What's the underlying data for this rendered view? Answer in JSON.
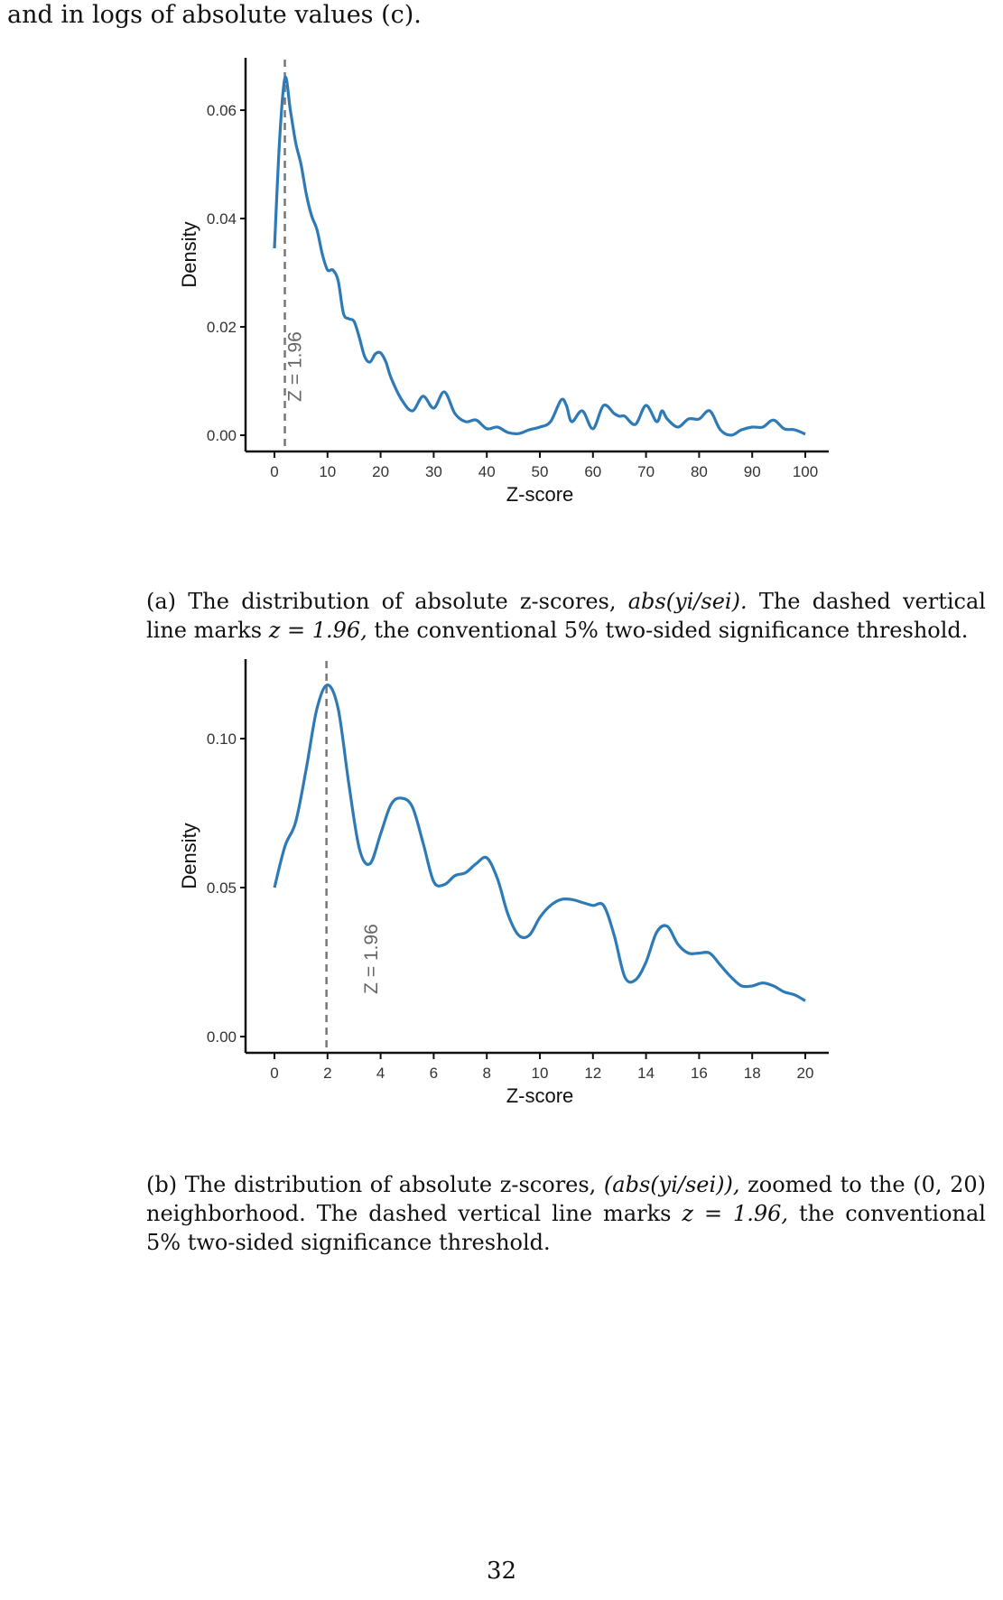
{
  "intro_text": "and in logs of absolute values (c).",
  "page_number": "32",
  "captions": {
    "a": {
      "label": "(a)",
      "before_math": "The distribution of absolute z-scores,",
      "math_expr": "abs(yi/sei).",
      "after_math": "The dashed vertical line marks",
      "z_expr": "z = 1.96,",
      "tail": "the conventional 5% two-sided significance threshold."
    },
    "b": {
      "label": "(b)",
      "before_math": "The distribution of absolute z-scores,",
      "math_expr": "(abs(yi/sei)),",
      "after_math": "zoomed to the (0, 20) neighborhood. The dashed vertical line marks",
      "z_expr": "z = 1.96,",
      "tail": "the conventional 5% two-sided significance threshold."
    }
  },
  "chart_data": [
    {
      "type": "line",
      "title": "",
      "xlabel": "Z-score",
      "ylabel": "Density",
      "xlim": [
        0,
        100
      ],
      "ylim": [
        0,
        0.066
      ],
      "x_ticks": [
        0,
        10,
        20,
        30,
        40,
        50,
        60,
        70,
        80,
        90,
        100
      ],
      "y_ticks": [
        "0.00",
        "0.02",
        "0.04",
        "0.06"
      ],
      "y_tick_values": [
        0,
        0.02,
        0.04,
        0.06
      ],
      "line_color": "#2e7ab6",
      "threshold": {
        "x": 1.96,
        "label": "Z = 1.96",
        "color": "#777777"
      },
      "series": [
        {
          "x": [
            0,
            1,
            2,
            3,
            4,
            5,
            6,
            7,
            8,
            9,
            10,
            11,
            12,
            13,
            14,
            15,
            16,
            17,
            18,
            19,
            20,
            21,
            22,
            24,
            26,
            28,
            30,
            32,
            34,
            36,
            38,
            40,
            42,
            44,
            46,
            48,
            50,
            52,
            54,
            55,
            56,
            58,
            60,
            62,
            64,
            65,
            66,
            68,
            70,
            72,
            73,
            74,
            76,
            78,
            80,
            82,
            84,
            86,
            88,
            90,
            92,
            94,
            96,
            98,
            100
          ],
          "y": [
            0.0345,
            0.055,
            0.066,
            0.06,
            0.054,
            0.05,
            0.0445,
            0.0405,
            0.038,
            0.0335,
            0.0305,
            0.0305,
            0.0285,
            0.0225,
            0.0215,
            0.021,
            0.018,
            0.0145,
            0.0135,
            0.015,
            0.0152,
            0.0135,
            0.0105,
            0.0065,
            0.0045,
            0.0072,
            0.005,
            0.008,
            0.004,
            0.0025,
            0.0028,
            0.0012,
            0.0015,
            0.0005,
            0.0003,
            0.001,
            0.0015,
            0.0025,
            0.0065,
            0.0055,
            0.0025,
            0.0045,
            0.0012,
            0.0055,
            0.004,
            0.0035,
            0.0035,
            0.002,
            0.0055,
            0.0025,
            0.0045,
            0.003,
            0.0015,
            0.003,
            0.003,
            0.0045,
            0.001,
            0.0,
            0.001,
            0.0015,
            0.0015,
            0.0028,
            0.0012,
            0.001,
            0.0002
          ]
        }
      ]
    },
    {
      "type": "line",
      "title": "",
      "xlabel": "Z-score",
      "ylabel": "Density",
      "xlim": [
        0,
        20
      ],
      "ylim": [
        0,
        0.12
      ],
      "x_ticks": [
        0,
        2,
        4,
        6,
        8,
        10,
        12,
        14,
        16,
        18,
        20
      ],
      "y_ticks": [
        "0.00",
        "0.05",
        "0.10"
      ],
      "y_tick_values": [
        0,
        0.05,
        0.1
      ],
      "line_color": "#2e7ab6",
      "threshold": {
        "x": 1.96,
        "label": "Z = 1.96",
        "color": "#777777"
      },
      "series": [
        {
          "x": [
            0,
            0.4,
            0.8,
            1.2,
            1.6,
            2.0,
            2.4,
            2.8,
            3.2,
            3.6,
            4.0,
            4.4,
            4.8,
            5.2,
            5.6,
            6.0,
            6.4,
            6.8,
            7.2,
            7.6,
            8.0,
            8.4,
            8.8,
            9.2,
            9.6,
            10.0,
            10.4,
            10.8,
            11.2,
            11.6,
            12.0,
            12.4,
            12.8,
            13.2,
            13.6,
            14.0,
            14.4,
            14.8,
            15.2,
            15.6,
            16.0,
            16.4,
            16.8,
            17.2,
            17.6,
            18.0,
            18.4,
            18.8,
            19.2,
            19.6,
            20.0
          ],
          "y": [
            0.05,
            0.064,
            0.072,
            0.09,
            0.11,
            0.118,
            0.11,
            0.085,
            0.063,
            0.058,
            0.068,
            0.078,
            0.08,
            0.077,
            0.065,
            0.052,
            0.051,
            0.054,
            0.055,
            0.058,
            0.06,
            0.053,
            0.041,
            0.034,
            0.034,
            0.04,
            0.044,
            0.046,
            0.046,
            0.045,
            0.044,
            0.044,
            0.034,
            0.02,
            0.019,
            0.025,
            0.035,
            0.037,
            0.031,
            0.028,
            0.028,
            0.028,
            0.024,
            0.02,
            0.017,
            0.017,
            0.018,
            0.017,
            0.015,
            0.014,
            0.012
          ]
        }
      ]
    }
  ]
}
